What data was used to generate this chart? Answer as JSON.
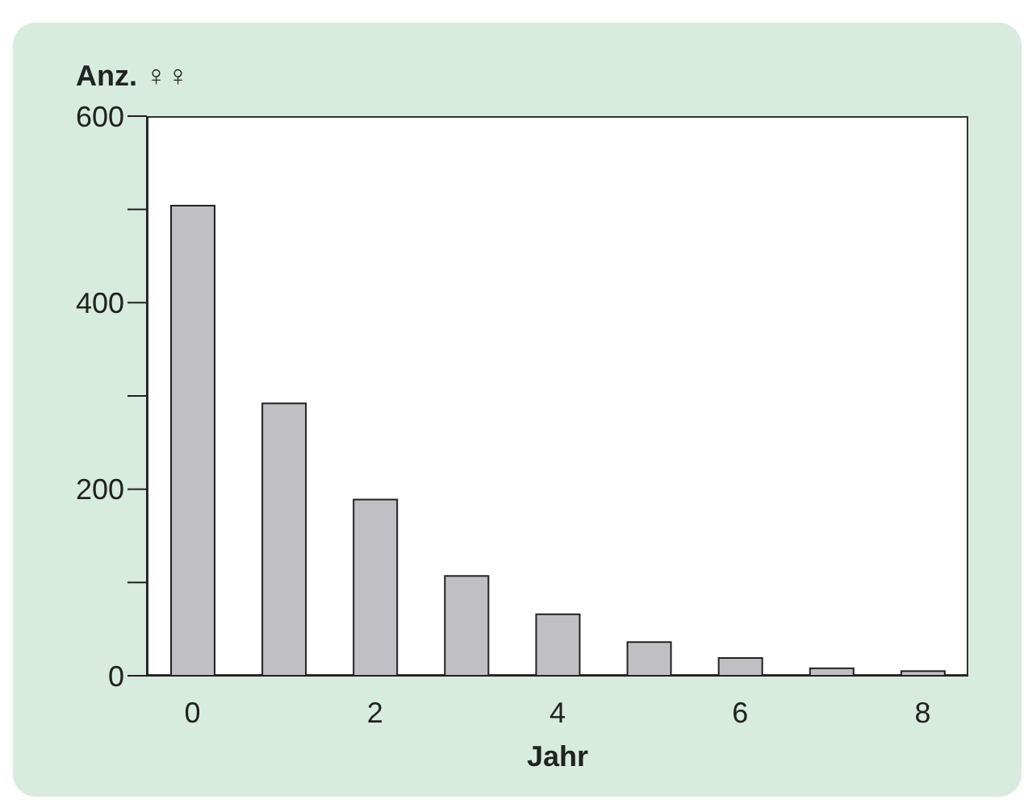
{
  "chart_data": {
    "type": "bar",
    "ylabel": "Anz. ♀♀",
    "xlabel": "Jahr",
    "categories": [
      "0",
      null,
      "2",
      null,
      "4",
      null,
      "6",
      null,
      "8"
    ],
    "values": [
      504,
      292,
      189,
      107,
      66,
      36,
      19,
      8,
      5
    ],
    "color": "#bfbfc4",
    "ylim": [
      0,
      600
    ],
    "yticks": [
      0,
      {
        "value": 100,
        "label": null
      },
      200,
      {
        "value": 300,
        "label": null
      },
      400,
      {
        "value": 500,
        "label": null
      },
      600
    ],
    "grid": false,
    "legend": false
  }
}
